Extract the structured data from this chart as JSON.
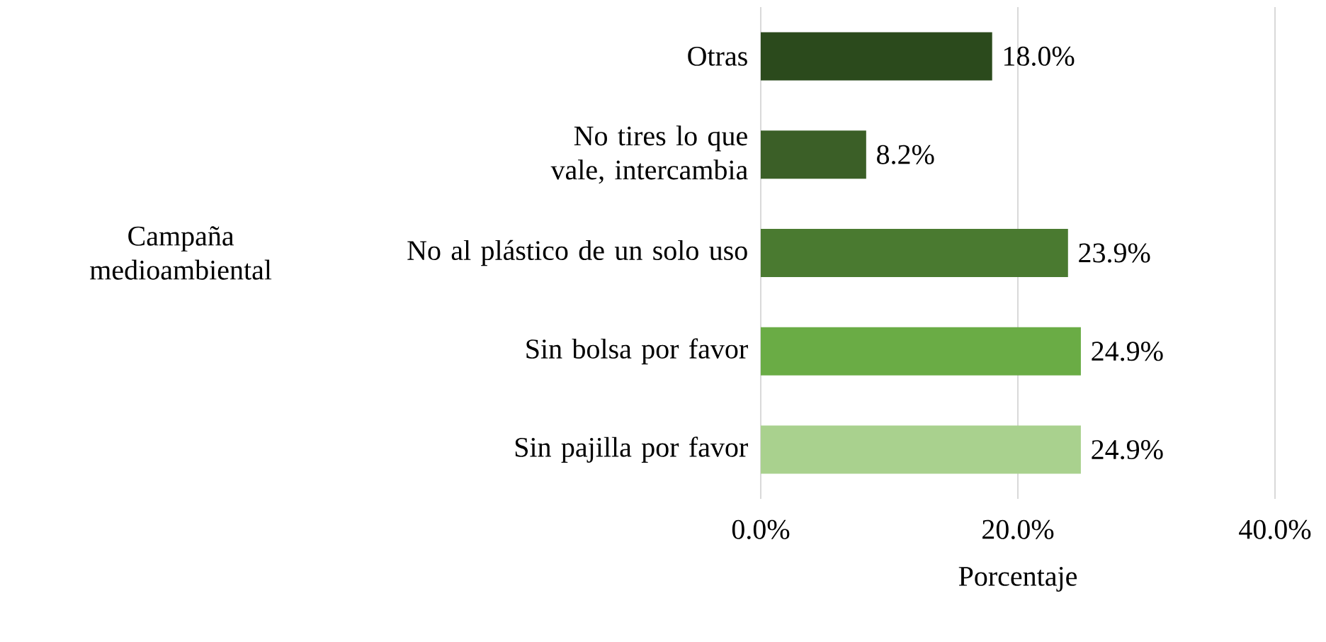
{
  "chart_data": {
    "type": "bar",
    "orientation": "horizontal",
    "categories": [
      "Otras",
      "No tires lo que vale, intercambia",
      "No al plástico de un solo uso",
      "Sin bolsa por favor",
      "Sin pajilla por favor"
    ],
    "values": [
      18.0,
      8.2,
      23.9,
      24.9,
      24.9
    ],
    "value_labels": [
      "18.0%",
      "8.2%",
      "23.9%",
      "24.9%",
      "24.9%"
    ],
    "colors": [
      "#2b4a1c",
      "#3b5f27",
      "#4a7a30",
      "#6aac45",
      "#a9d18e"
    ],
    "xlim": [
      0,
      40
    ],
    "xticks": [
      {
        "value": 0,
        "label": "0.0%"
      },
      {
        "value": 20,
        "label": "20.0%"
      },
      {
        "value": 40,
        "label": "40.0%"
      }
    ],
    "xlabel": "Porcentaje",
    "ylabel": "Campaña medioambiental",
    "grid": "x"
  }
}
